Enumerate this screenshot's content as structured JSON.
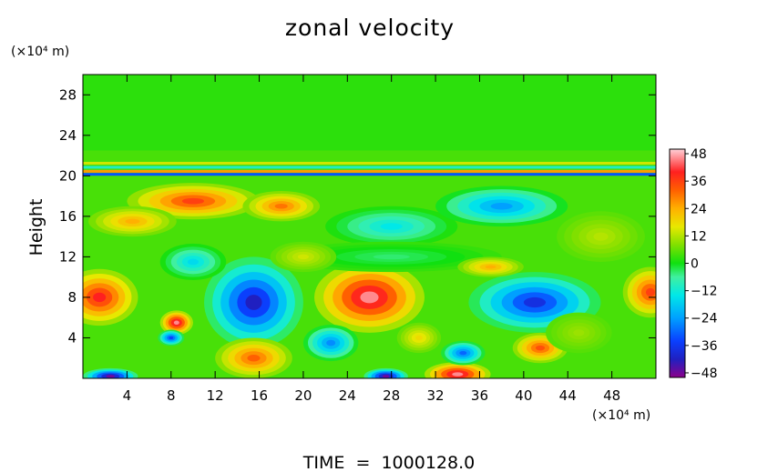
{
  "chart_data": {
    "type": "heatmap",
    "title": "zonal velocity",
    "ylabel": "Height",
    "y_unit": "(×10⁴ m)",
    "x_unit": "(×10⁴ m)",
    "footer": "TIME  =  1000128.0",
    "xlim": [
      0,
      52
    ],
    "ylim": [
      0,
      30
    ],
    "x_ticks": [
      "4",
      "8",
      "12",
      "16",
      "20",
      "24",
      "28",
      "32",
      "36",
      "40",
      "44",
      "48"
    ],
    "y_ticks": [
      "4",
      "8",
      "12",
      "16",
      "20",
      "24",
      "28"
    ],
    "colorbar": {
      "range": [
        -50,
        50
      ],
      "ticks": [
        "48",
        "36",
        "24",
        "12",
        "0",
        "−12",
        "−24",
        "−36",
        "−48"
      ],
      "stops": [
        {
          "v": -50,
          "color": "#8b008b"
        },
        {
          "v": -42,
          "color": "#2020c0"
        },
        {
          "v": -34,
          "color": "#0a40ff"
        },
        {
          "v": -24,
          "color": "#00a0ff"
        },
        {
          "v": -14,
          "color": "#00e8e8"
        },
        {
          "v": -6,
          "color": "#40f0a0"
        },
        {
          "v": 0,
          "color": "#10e010"
        },
        {
          "v": 8,
          "color": "#80e000"
        },
        {
          "v": 16,
          "color": "#e8e800"
        },
        {
          "v": 24,
          "color": "#ffb000"
        },
        {
          "v": 32,
          "color": "#ff6000"
        },
        {
          "v": 40,
          "color": "#ff2020"
        },
        {
          "v": 50,
          "color": "#ffd0d8"
        }
      ]
    },
    "background_value": 4,
    "features": [
      {
        "x": 1.5,
        "y": 8.0,
        "rx": 3.5,
        "ry": 2.8,
        "v": 40
      },
      {
        "x": 8.5,
        "y": 5.5,
        "rx": 1.5,
        "ry": 1.2,
        "v": 46
      },
      {
        "x": 8.0,
        "y": 4.0,
        "rx": 1.2,
        "ry": 0.8,
        "v": -34
      },
      {
        "x": 15.5,
        "y": 7.5,
        "rx": 4.5,
        "ry": 4.5,
        "v": -42
      },
      {
        "x": 15.5,
        "y": 2.0,
        "rx": 3.5,
        "ry": 2.0,
        "v": 32
      },
      {
        "x": 26.0,
        "y": 8.0,
        "rx": 5.0,
        "ry": 3.5,
        "v": 46
      },
      {
        "x": 22.5,
        "y": 3.5,
        "rx": 2.5,
        "ry": 1.8,
        "v": -26
      },
      {
        "x": 34.0,
        "y": 0.4,
        "rx": 3.0,
        "ry": 1.2,
        "v": 46
      },
      {
        "x": 34.5,
        "y": 2.5,
        "rx": 2.0,
        "ry": 1.2,
        "v": -30
      },
      {
        "x": 41.0,
        "y": 7.5,
        "rx": 6.0,
        "ry": 3.0,
        "v": -38
      },
      {
        "x": 41.5,
        "y": 3.0,
        "rx": 2.5,
        "ry": 1.5,
        "v": 34
      },
      {
        "x": 51.5,
        "y": 8.5,
        "rx": 2.5,
        "ry": 2.5,
        "v": 36
      },
      {
        "x": 10.0,
        "y": 17.5,
        "rx": 6.0,
        "ry": 1.8,
        "v": 36
      },
      {
        "x": 4.5,
        "y": 15.5,
        "rx": 4.0,
        "ry": 1.5,
        "v": 24
      },
      {
        "x": 18.0,
        "y": 17.0,
        "rx": 3.5,
        "ry": 1.5,
        "v": 30
      },
      {
        "x": 28.0,
        "y": 15.0,
        "rx": 6.0,
        "ry": 2.0,
        "v": -14
      },
      {
        "x": 38.0,
        "y": 17.0,
        "rx": 6.0,
        "ry": 2.0,
        "v": -24
      },
      {
        "x": 28.0,
        "y": 12.0,
        "rx": 10.0,
        "ry": 1.5,
        "v": -4
      },
      {
        "x": 37.0,
        "y": 11.0,
        "rx": 3.0,
        "ry": 1.0,
        "v": 24
      },
      {
        "x": 47.0,
        "y": 14.0,
        "rx": 4.0,
        "ry": 2.5,
        "v": 12
      },
      {
        "x": 2.5,
        "y": 0.2,
        "rx": 2.5,
        "ry": 0.8,
        "v": -48
      },
      {
        "x": 27.5,
        "y": 0.2,
        "rx": 2.0,
        "ry": 0.8,
        "v": -48
      },
      {
        "x": 10.0,
        "y": 11.5,
        "rx": 3.0,
        "ry": 1.8,
        "v": -16
      },
      {
        "x": 20.0,
        "y": 12.0,
        "rx": 3.0,
        "ry": 1.5,
        "v": 14
      },
      {
        "x": 45.0,
        "y": 4.5,
        "rx": 3.0,
        "ry": 2.0,
        "v": 10
      },
      {
        "x": 30.5,
        "y": 4.0,
        "rx": 2.0,
        "ry": 1.5,
        "v": 18
      }
    ],
    "bands": [
      {
        "y": 20.1,
        "v": -32
      },
      {
        "y": 20.4,
        "v": 26
      },
      {
        "y": 20.8,
        "v": -10
      },
      {
        "y": 21.2,
        "v": 14
      },
      {
        "y": 22.0,
        "v": 4
      }
    ]
  }
}
